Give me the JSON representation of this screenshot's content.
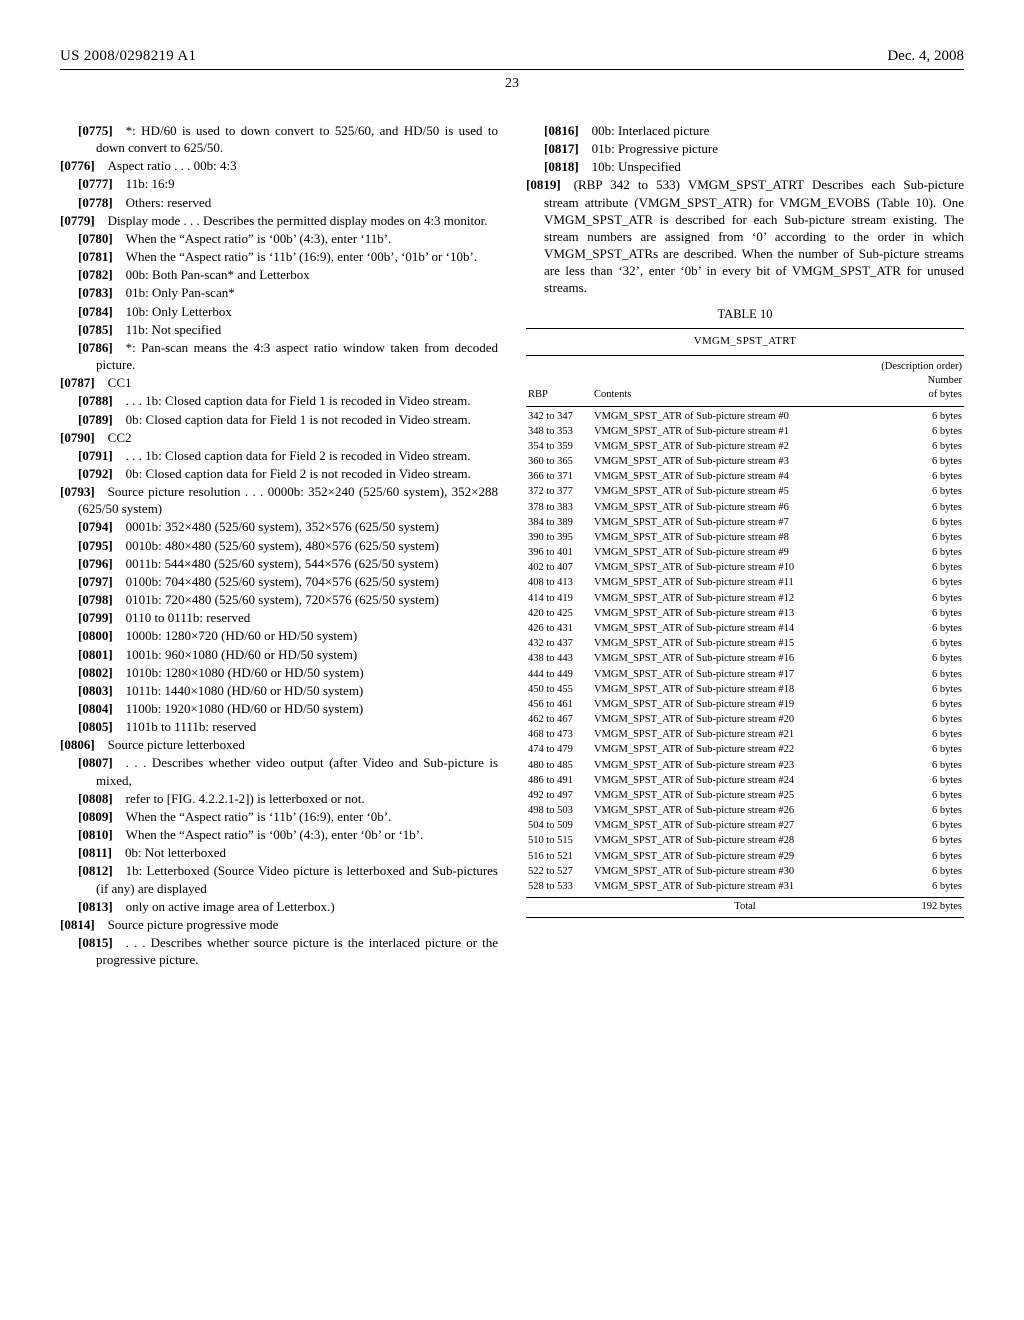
{
  "header": {
    "left": "US 2008/0298219 A1",
    "right": "Dec. 4, 2008",
    "page_number": "23"
  },
  "left_col": [
    {
      "cls": "ind2",
      "num": "[0775]",
      "text": "*: HD/60 is used to down convert to 525/60, and HD/50 is used to down convert to 625/50."
    },
    {
      "cls": "ind1",
      "num": "[0776]",
      "text": "Aspect ratio . . . 00b: 4:3"
    },
    {
      "cls": "ind2",
      "num": "[0777]",
      "text": "11b: 16:9"
    },
    {
      "cls": "ind2",
      "num": "[0778]",
      "text": "Others: reserved"
    },
    {
      "cls": "ind1",
      "num": "[0779]",
      "text": "Display mode . . . Describes the permitted display modes on 4:3 monitor."
    },
    {
      "cls": "ind2",
      "num": "[0780]",
      "text": "When the “Aspect ratio” is ‘00b’ (4:3), enter ‘11b’."
    },
    {
      "cls": "ind2",
      "num": "[0781]",
      "text": "When the “Aspect ratio” is ‘11b’ (16:9), enter ‘00b’, ‘01b’ or ‘10b’."
    },
    {
      "cls": "ind2",
      "num": "[0782]",
      "text": "00b: Both Pan-scan* and Letterbox"
    },
    {
      "cls": "ind2",
      "num": "[0783]",
      "text": "01b: Only Pan-scan*"
    },
    {
      "cls": "ind2",
      "num": "[0784]",
      "text": "10b: Only Letterbox"
    },
    {
      "cls": "ind2",
      "num": "[0785]",
      "text": "11b: Not specified"
    },
    {
      "cls": "ind2",
      "num": "[0786]",
      "text": "*: Pan-scan means the 4:3 aspect ratio window taken from decoded picture."
    },
    {
      "cls": "ind1",
      "num": "[0787]",
      "text": "CC1"
    },
    {
      "cls": "ind2",
      "num": "[0788]",
      "text": ". . . 1b: Closed caption data for Field 1 is recoded in Video stream."
    },
    {
      "cls": "ind2",
      "num": "[0789]",
      "text": "0b: Closed caption data for Field 1 is not recoded in Video stream."
    },
    {
      "cls": "ind1",
      "num": "[0790]",
      "text": "CC2"
    },
    {
      "cls": "ind2",
      "num": "[0791]",
      "text": ". . . 1b: Closed caption data for Field 2 is recoded in Video stream."
    },
    {
      "cls": "ind2",
      "num": "[0792]",
      "text": "0b: Closed caption data for Field 2 is not recoded in Video stream."
    },
    {
      "cls": "ind1",
      "num": "[0793]",
      "text": "Source picture resolution . . . 0000b: 352×240 (525/60 system), 352×288 (625/50 system)"
    },
    {
      "cls": "ind2",
      "num": "[0794]",
      "text": "0001b: 352×480 (525/60 system), 352×576 (625/50 system)"
    },
    {
      "cls": "ind2",
      "num": "[0795]",
      "text": "0010b: 480×480 (525/60 system), 480×576 (625/50 system)"
    },
    {
      "cls": "ind2",
      "num": "[0796]",
      "text": "0011b: 544×480 (525/60 system), 544×576 (625/50 system)"
    },
    {
      "cls": "ind2",
      "num": "[0797]",
      "text": "0100b: 704×480 (525/60 system), 704×576 (625/50 system)"
    },
    {
      "cls": "ind2",
      "num": "[0798]",
      "text": "0101b: 720×480 (525/60 system), 720×576 (625/50 system)"
    },
    {
      "cls": "ind2",
      "num": "[0799]",
      "text": "0110 to 0111b: reserved"
    },
    {
      "cls": "ind2",
      "num": "[0800]",
      "text": "1000b: 1280×720 (HD/60 or HD/50 system)"
    },
    {
      "cls": "ind2",
      "num": "[0801]",
      "text": "1001b: 960×1080 (HD/60 or HD/50 system)"
    },
    {
      "cls": "ind2",
      "num": "[0802]",
      "text": "1010b: 1280×1080 (HD/60 or HD/50 system)"
    },
    {
      "cls": "ind2",
      "num": "[0803]",
      "text": "1011b: 1440×1080 (HD/60 or HD/50 system)"
    },
    {
      "cls": "ind2",
      "num": "[0804]",
      "text": "1100b: 1920×1080 (HD/60 or HD/50 system)"
    },
    {
      "cls": "ind2",
      "num": "[0805]",
      "text": "1101b to 1111b: reserved"
    },
    {
      "cls": "ind1",
      "num": "[0806]",
      "text": "Source picture letterboxed"
    },
    {
      "cls": "ind2",
      "num": "[0807]",
      "text": ". . . Describes whether video output (after Video and Sub-picture is mixed,"
    },
    {
      "cls": "ind2",
      "num": "[0808]",
      "text": "refer to [FIG. 4.2.2.1-2]) is letterboxed or not."
    },
    {
      "cls": "ind2",
      "num": "[0809]",
      "text": "When the “Aspect ratio” is ‘11b’ (16:9), enter ‘0b’."
    },
    {
      "cls": "ind2",
      "num": "[0810]",
      "text": "When the “Aspect ratio” is ‘00b’ (4:3), enter ‘0b’ or ‘1b’."
    },
    {
      "cls": "ind2",
      "num": "[0811]",
      "text": "0b: Not letterboxed"
    },
    {
      "cls": "ind2",
      "num": "[0812]",
      "text": "1b: Letterboxed (Source Video picture is letterboxed and Sub-pictures (if any) are displayed"
    },
    {
      "cls": "ind2",
      "num": "[0813]",
      "text": "only on active image area of Letterbox.)"
    },
    {
      "cls": "ind1",
      "num": "[0814]",
      "text": "Source picture progressive mode"
    },
    {
      "cls": "ind2",
      "num": "[0815]",
      "text": ". . . Describes whether source picture is the interlaced picture or the progressive picture."
    }
  ],
  "right_col_top": [
    {
      "cls": "ind2",
      "num": "[0816]",
      "text": "00b: Interlaced picture"
    },
    {
      "cls": "ind2",
      "num": "[0817]",
      "text": "01b: Progressive picture"
    },
    {
      "cls": "ind2",
      "num": "[0818]",
      "text": "10b: Unspecified"
    },
    {
      "cls": "ind1",
      "num": "[0819]",
      "text": "(RBP 342 to 533) VMGM_SPST_ATRT Describes each Sub-picture stream attribute (VMGM_SPST_ATR) for VMGM_EVOBS (Table 10). One VMGM_SPST_ATR is described for each Sub-picture stream existing. The stream numbers are assigned from ‘0’ according to the order in which VMGM_SPST_ATRs are described. When the number of Sub-picture streams are less than ‘32’, enter ‘0b’ in every bit of VMGM_SPST_ATR for unused streams."
    }
  ],
  "table": {
    "title": "TABLE 10",
    "subtitle": "VMGM_SPST_ATRT",
    "columns": {
      "rbp": "RBP",
      "contents": "Contents",
      "bytes_l1": "(Description order)",
      "bytes_l2": "Number",
      "bytes_l3": "of bytes"
    },
    "rows": [
      {
        "rbp": "342 to 347",
        "contents": "VMGM_SPST_ATR of Sub-picture stream #0",
        "bytes": "6 bytes"
      },
      {
        "rbp": "348 to 353",
        "contents": "VMGM_SPST_ATR of Sub-picture stream #1",
        "bytes": "6 bytes"
      },
      {
        "rbp": "354 to 359",
        "contents": "VMGM_SPST_ATR of Sub-picture stream #2",
        "bytes": "6 bytes"
      },
      {
        "rbp": "360 to 365",
        "contents": "VMGM_SPST_ATR of Sub-picture stream #3",
        "bytes": "6 bytes"
      },
      {
        "rbp": "366 to 371",
        "contents": "VMGM_SPST_ATR of Sub-picture stream #4",
        "bytes": "6 bytes"
      },
      {
        "rbp": "372 to 377",
        "contents": "VMGM_SPST_ATR of Sub-picture stream #5",
        "bytes": "6 bytes"
      },
      {
        "rbp": "378 to 383",
        "contents": "VMGM_SPST_ATR of Sub-picture stream #6",
        "bytes": "6 bytes"
      },
      {
        "rbp": "384 to 389",
        "contents": "VMGM_SPST_ATR of Sub-picture stream #7",
        "bytes": "6 bytes"
      },
      {
        "rbp": "390 to 395",
        "contents": "VMGM_SPST_ATR of Sub-picture stream #8",
        "bytes": "6 bytes"
      },
      {
        "rbp": "396 to 401",
        "contents": "VMGM_SPST_ATR of Sub-picture stream #9",
        "bytes": "6 bytes"
      },
      {
        "rbp": "402 to 407",
        "contents": "VMGM_SPST_ATR of Sub-picture stream #10",
        "bytes": "6 bytes"
      },
      {
        "rbp": "408 to 413",
        "contents": "VMGM_SPST_ATR of Sub-picture stream #11",
        "bytes": "6 bytes"
      },
      {
        "rbp": "414 to 419",
        "contents": "VMGM_SPST_ATR of Sub-picture stream #12",
        "bytes": "6 bytes"
      },
      {
        "rbp": "420 to 425",
        "contents": "VMGM_SPST_ATR of Sub-picture stream #13",
        "bytes": "6 bytes"
      },
      {
        "rbp": "426 to 431",
        "contents": "VMGM_SPST_ATR of Sub-picture stream #14",
        "bytes": "6 bytes"
      },
      {
        "rbp": "432 to 437",
        "contents": "VMGM_SPST_ATR of Sub-picture stream #15",
        "bytes": "6 bytes"
      },
      {
        "rbp": "438 to 443",
        "contents": "VMGM_SPST_ATR of Sub-picture stream #16",
        "bytes": "6 bytes"
      },
      {
        "rbp": "444 to 449",
        "contents": "VMGM_SPST_ATR of Sub-picture stream #17",
        "bytes": "6 bytes"
      },
      {
        "rbp": "450 to 455",
        "contents": "VMGM_SPST_ATR of Sub-picture stream #18",
        "bytes": "6 bytes"
      },
      {
        "rbp": "456 to 461",
        "contents": "VMGM_SPST_ATR of Sub-picture stream #19",
        "bytes": "6 bytes"
      },
      {
        "rbp": "462 to 467",
        "contents": "VMGM_SPST_ATR of Sub-picture stream #20",
        "bytes": "6 bytes"
      },
      {
        "rbp": "468 to 473",
        "contents": "VMGM_SPST_ATR of Sub-picture stream #21",
        "bytes": "6 bytes"
      },
      {
        "rbp": "474 to 479",
        "contents": "VMGM_SPST_ATR of Sub-picture stream #22",
        "bytes": "6 bytes"
      },
      {
        "rbp": "480 to 485",
        "contents": "VMGM_SPST_ATR of Sub-picture stream #23",
        "bytes": "6 bytes"
      },
      {
        "rbp": "486 to 491",
        "contents": "VMGM_SPST_ATR of Sub-picture stream #24",
        "bytes": "6 bytes"
      },
      {
        "rbp": "492 to 497",
        "contents": "VMGM_SPST_ATR of Sub-picture stream #25",
        "bytes": "6 bytes"
      },
      {
        "rbp": "498 to 503",
        "contents": "VMGM_SPST_ATR of Sub-picture stream #26",
        "bytes": "6 bytes"
      },
      {
        "rbp": "504 to 509",
        "contents": "VMGM_SPST_ATR of Sub-picture stream #27",
        "bytes": "6 bytes"
      },
      {
        "rbp": "510 to 515",
        "contents": "VMGM_SPST_ATR of Sub-picture stream #28",
        "bytes": "6 bytes"
      },
      {
        "rbp": "516 to 521",
        "contents": "VMGM_SPST_ATR of Sub-picture stream #29",
        "bytes": "6 bytes"
      },
      {
        "rbp": "522 to 527",
        "contents": "VMGM_SPST_ATR of Sub-picture stream #30",
        "bytes": "6 bytes"
      },
      {
        "rbp": "528 to 533",
        "contents": "VMGM_SPST_ATR of Sub-picture stream #31",
        "bytes": "6 bytes"
      }
    ],
    "total_label": "Total",
    "total_bytes": "192 bytes"
  }
}
